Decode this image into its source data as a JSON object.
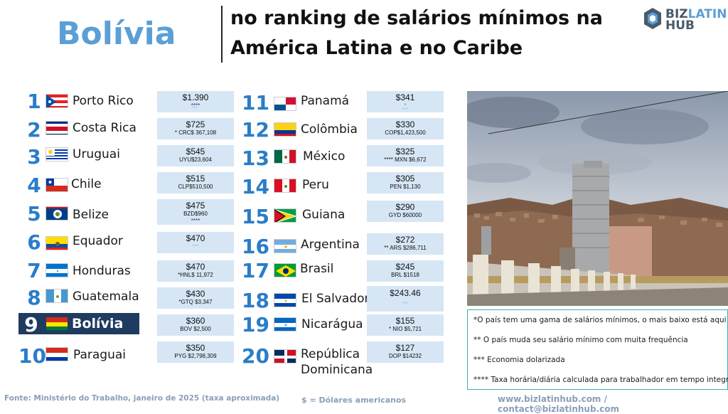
{
  "header": {
    "country": "Bolívia",
    "title_line_1": "no ranking de salários mínimos na",
    "title_line_2": "América Latina e no Caribe",
    "logo_biz": "BIZ",
    "logo_latin": "LATIN",
    "logo_hub": "HUB"
  },
  "left_column": [
    {
      "rank": "1",
      "name": "Porto Rico",
      "wage": "$1.390",
      "sub": "****",
      "stars": "***"
    },
    {
      "rank": "2",
      "name": "Costa Rica",
      "wage": "$725",
      "sub": "* CRC$ 367,108",
      "stars": ""
    },
    {
      "rank": "3",
      "name": "Uruguai",
      "wage": "$545",
      "sub": "UYU$23,604",
      "stars": ""
    },
    {
      "rank": "4",
      "name": "Chile",
      "wage": "$515",
      "sub": "CLP$510,500",
      "stars": ""
    },
    {
      "rank": "5",
      "name": "Belize",
      "wage": "$475",
      "sub": "BZD$960",
      "stars": "****"
    },
    {
      "rank": "6",
      "name": "Equador",
      "wage": "$470",
      "sub": "***",
      "stars": ""
    },
    {
      "rank": "7",
      "name": "Honduras",
      "wage": "$470",
      "sub": "*HNL$ 11,972",
      "stars": ""
    },
    {
      "rank": "8",
      "name": "Guatemala",
      "wage": "$430",
      "sub": "*GTQ $3,347",
      "stars": ""
    },
    {
      "rank": "9",
      "name": "Bolívia",
      "wage": "$360",
      "sub": "BOV $2,500",
      "stars": ""
    },
    {
      "rank": "10",
      "name": "Paraguai",
      "wage": "$350",
      "sub": "PYG $2,798,309",
      "stars": ""
    }
  ],
  "right_column": [
    {
      "rank": "11",
      "name": "Panamá",
      "wage": "$341",
      "sub": "*",
      "stars": "***"
    },
    {
      "rank": "12",
      "name": "Colômbia",
      "wage": "$330",
      "sub": "COP$1,423,500",
      "stars": ""
    },
    {
      "rank": "13",
      "name": "México",
      "wage": "$325",
      "sub": "****  MXN $6,672",
      "stars": ""
    },
    {
      "rank": "14",
      "name": "Peru",
      "wage": "$305",
      "sub": "PEN $1,130",
      "stars": ""
    },
    {
      "rank": "15",
      "name": "Guiana",
      "wage": "$290",
      "sub": "GYD $60000",
      "stars": ""
    },
    {
      "rank": "16",
      "name": "Argentina",
      "wage": "$272",
      "sub": "** ARS $286,711",
      "stars": ""
    },
    {
      "rank": "17",
      "name": "Brasil",
      "wage": "$245",
      "sub": "BRL $1518",
      "stars": ""
    },
    {
      "rank": "18",
      "name": "El Salvador",
      "wage": "$243.46",
      "sub": "***",
      "stars": ""
    },
    {
      "rank": "19",
      "name": "Nicarágua",
      "wage": "$155",
      "sub": "*  NIO  $5,721",
      "stars": ""
    },
    {
      "rank": "20",
      "name": "República",
      "name2": "Dominicana",
      "wage": "$127",
      "sub": "DOP $14232",
      "stars": ""
    }
  ],
  "notes": {
    "n1": "*O país tem uma gama de salários mínimos, o mais baixo está aqui",
    "n2": "** O país muda seu salário mínimo com muita frequência",
    "n3": "*** Economia dolarizada",
    "n4": "**** Taxa horária/diária calculada para trabalhador em tempo integral"
  },
  "footer": {
    "source": "Fonte: Ministério do Trabalho, janeiro de 2025 (taxa aproximada)",
    "currency": "$ = Dólares americanos",
    "contact": "www.bizlatinhub.com / contact@bizlatinhub.com"
  },
  "colors": {
    "accent": "#2a7dc8",
    "title_blue": "#5b9fd6",
    "highlight": "#1f3b60",
    "wage_box": "#d6e6f5"
  }
}
